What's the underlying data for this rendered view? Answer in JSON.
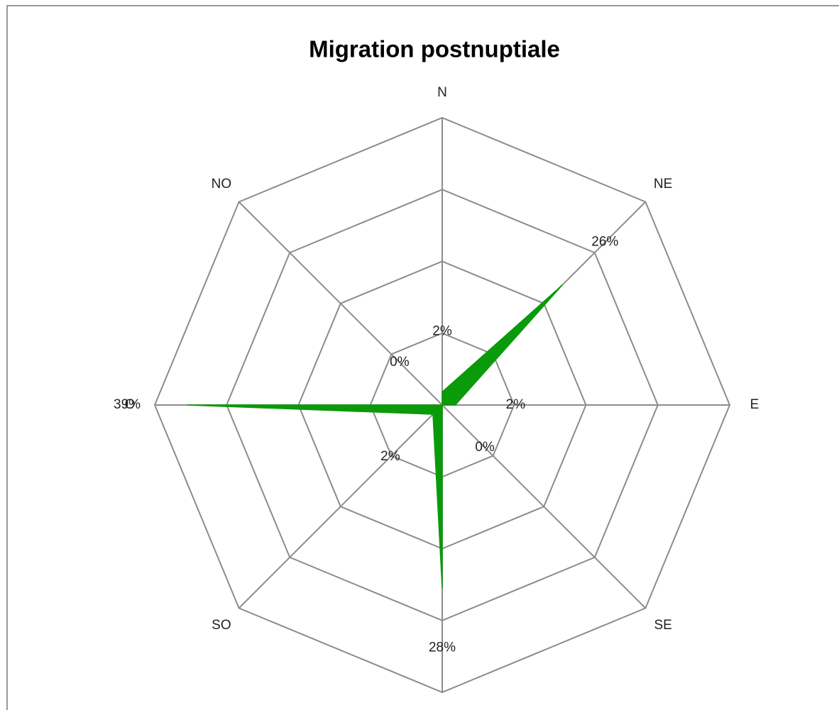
{
  "chart_data": {
    "type": "radar",
    "title": "Migration postnuptiale",
    "categories": [
      "N",
      "NE",
      "E",
      "SE",
      null,
      "SO",
      "O",
      "NO"
    ],
    "series": [
      {
        "name": null,
        "color": "#0a9a0a",
        "values": [
          2,
          26,
          2,
          0,
          28,
          2,
          39,
          0
        ],
        "value_labels": [
          "2%",
          "26%",
          "2%",
          "0%",
          "28%",
          "2%",
          "39%",
          "0%"
        ]
      }
    ],
    "ylim": [
      0,
      44
    ],
    "yticks": [
      0,
      11,
      22,
      33,
      44
    ],
    "grid": true
  }
}
